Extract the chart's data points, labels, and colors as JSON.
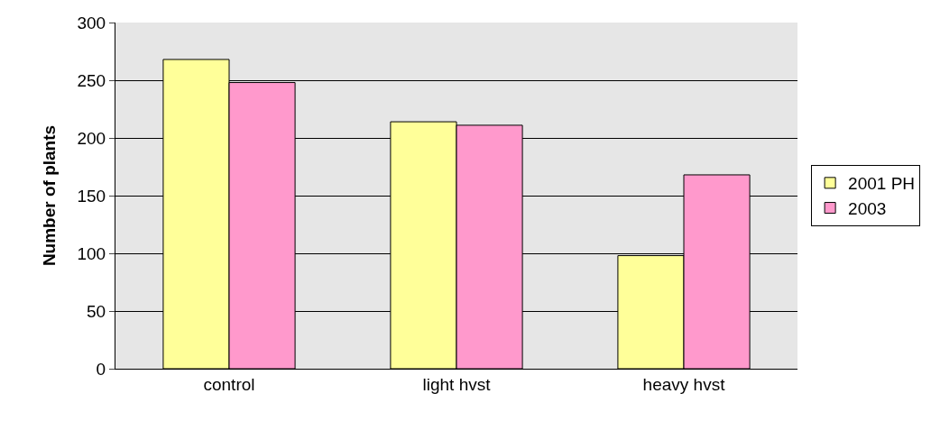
{
  "chart_data": {
    "type": "bar",
    "ylabel": "Number of plants",
    "categories": [
      "control",
      "light hvst",
      "heavy hvst"
    ],
    "series": [
      {
        "name": "2001 PH",
        "color": "#ffff99",
        "values": [
          268,
          214,
          98
        ]
      },
      {
        "name": "2003",
        "color": "#ff99cc",
        "values": [
          248,
          211,
          168
        ]
      }
    ],
    "ylim": [
      0,
      300
    ],
    "yticks": [
      0,
      50,
      100,
      150,
      200,
      250,
      300
    ],
    "grid": "y",
    "legend": "right"
  }
}
